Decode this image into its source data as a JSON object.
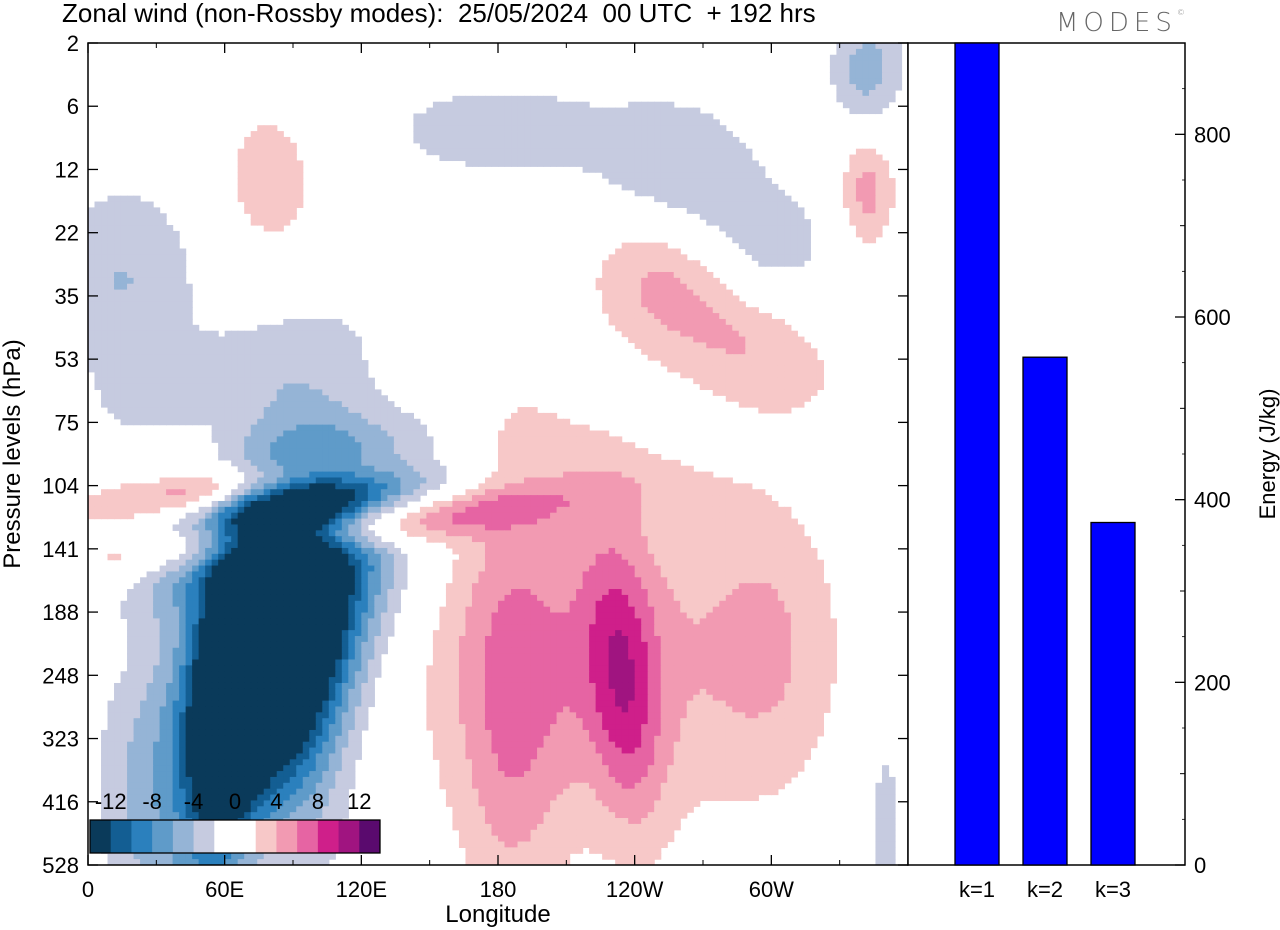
{
  "title": "Zonal wind (non-Rossby modes):  25/05/2024  00 UTC  + 192 hrs",
  "logo": "MODES",
  "logo_mark": "©",
  "chart_data": [
    {
      "type": "heatmap",
      "title": "Zonal wind (non-Rossby modes):  25/05/2024  00 UTC  + 192 hrs",
      "xlabel": "Longitude",
      "ylabel": "Pressure levels (hPa)",
      "xticks": [
        "0",
        "60E",
        "120E",
        "180",
        "120W",
        "60W"
      ],
      "yticks": [
        "2",
        "6",
        "12",
        "22",
        "35",
        "53",
        "75",
        "104",
        "141",
        "188",
        "248",
        "323",
        "416",
        "528"
      ],
      "colorbar": {
        "labels": [
          "-12",
          "-8",
          "-4",
          "0",
          "4",
          "8",
          "12"
        ],
        "colors": [
          "#0a3a5a",
          "#135e93",
          "#2b80bd",
          "#5f9bc9",
          "#95b4d6",
          "#c6cbe0",
          "#ffffff",
          "#ffffff",
          "#f7c8c8",
          "#f29ab2",
          "#e664a3",
          "#cf1f8a",
          "#a01480",
          "#5a0a6e"
        ]
      },
      "patches": [
        {
          "lon": 80,
          "p": 120,
          "dlon": 30,
          "levels": 2.6,
          "v": -13,
          "tilt": 0.5
        },
        {
          "lon": 70,
          "p": 150,
          "dlon": 30,
          "levels": 3.5,
          "v": -9,
          "tilt": 0.6
        },
        {
          "lon": 62,
          "p": 170,
          "dlon": 14,
          "levels": 2.4,
          "v": -10,
          "tilt": 0.4
        },
        {
          "lon": 65,
          "p": 60,
          "dlon": 38,
          "levels": 1.2,
          "v": -5,
          "tilt": 1.2
        },
        {
          "lon": 110,
          "p": 75,
          "dlon": 34,
          "levels": 2.6,
          "v": -6,
          "tilt": 0.9
        },
        {
          "lon": 95,
          "p": 250,
          "dlon": 24,
          "levels": 4.0,
          "v": -4,
          "tilt": 0.2
        },
        {
          "lon": 115,
          "p": 40,
          "dlon": 70,
          "levels": 1.0,
          "v": -3,
          "tilt": 1.1
        },
        {
          "lon": 15,
          "p": 10,
          "dlon": 35,
          "levels": 1.6,
          "v": -4,
          "tilt": 0
        },
        {
          "lon": 60,
          "p": 19,
          "dlon": 45,
          "levels": 1.0,
          "v": -2.5,
          "tilt": 0.8
        },
        {
          "lon": 180,
          "p": 3.6,
          "dlon": 60,
          "levels": 0.9,
          "v": -3,
          "tilt": 0
        },
        {
          "lon": 260,
          "p": 5,
          "dlon": 35,
          "levels": 1.2,
          "v": -4,
          "tilt": 0
        },
        {
          "lon": 300,
          "p": 8,
          "dlon": 30,
          "levels": 1.0,
          "v": -3,
          "tilt": 0
        },
        {
          "lon": 342,
          "p": 2.4,
          "dlon": 16,
          "levels": 0.9,
          "v": -5,
          "tilt": 0
        },
        {
          "lon": 20,
          "p": 220,
          "dlon": 20,
          "levels": 3.5,
          "v": -3,
          "tilt": 0
        },
        {
          "lon": 350,
          "p": 420,
          "dlon": 8,
          "levels": 2.0,
          "v": -3,
          "tilt": 0
        },
        {
          "lon": 70,
          "p": 40,
          "dlon": 48,
          "levels": 0.5,
          "v": 8,
          "tilt": 1.0
        },
        {
          "lon": 105,
          "p": 55,
          "dlon": 60,
          "levels": 0.55,
          "v": 9,
          "tilt": 1.1
        },
        {
          "lon": 215,
          "p": 130,
          "dlon": 70,
          "levels": 2.8,
          "v": 5,
          "tilt": 0
        },
        {
          "lon": 235,
          "p": 150,
          "dlon": 16,
          "levels": 2.2,
          "v": 6,
          "tilt": -0.3
        },
        {
          "lon": 300,
          "p": 120,
          "dlon": 32,
          "levels": 2.4,
          "v": 3.5,
          "tilt": 0
        },
        {
          "lon": 185,
          "p": 210,
          "dlon": 22,
          "levels": 3.5,
          "v": 3.5,
          "tilt": 0
        },
        {
          "lon": 285,
          "p": 15,
          "dlon": 40,
          "levels": 1.2,
          "v": 4,
          "tilt": -0.5
        },
        {
          "lon": 250,
          "p": 9,
          "dlon": 30,
          "levels": 1.1,
          "v": 3.5,
          "tilt": 0
        },
        {
          "lon": 195,
          "p": 30,
          "dlon": 55,
          "levels": 1.0,
          "v": 2.6,
          "tilt": -0.4
        },
        {
          "lon": 80,
          "p": 5,
          "dlon": 22,
          "levels": 1.2,
          "v": 3.5,
          "tilt": 0
        },
        {
          "lon": 342,
          "p": 5.5,
          "dlon": 12,
          "levels": 0.9,
          "v": 5,
          "tilt": 0
        },
        {
          "lon": 75,
          "p": 420,
          "dlon": 26,
          "levels": 2.4,
          "v": 3.5,
          "tilt": 0
        },
        {
          "lon": 15,
          "p": 80,
          "dlon": 18,
          "levels": 1.6,
          "v": 2.6,
          "tilt": 0
        }
      ]
    },
    {
      "type": "bar",
      "categories": [
        "k=1",
        "k=2",
        "k=3"
      ],
      "values": [
        900,
        556,
        375
      ],
      "ylabel": "Energy (J/kg)",
      "yticks": [
        "0",
        "200",
        "400",
        "600",
        "800"
      ],
      "ylim": [
        0,
        900
      ],
      "color": "#0000ff"
    }
  ]
}
